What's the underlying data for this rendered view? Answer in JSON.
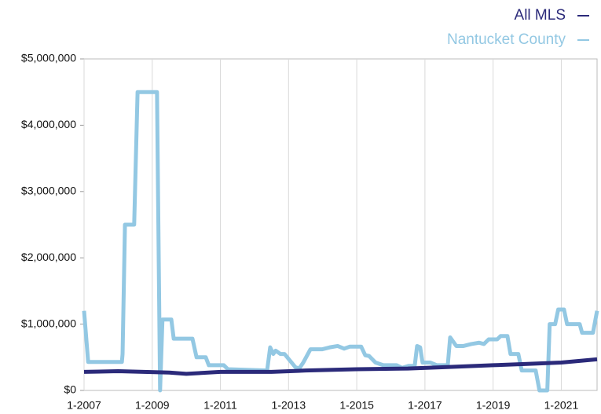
{
  "chart_data": {
    "type": "line",
    "series": [
      {
        "name": "All MLS",
        "color": "#2b2a7a",
        "x": [
          2007,
          2008,
          2009.5,
          2010,
          2011,
          2012.5,
          2013.5,
          2015,
          2016.5,
          2017.5,
          2019,
          2020,
          2021,
          2022.05
        ],
        "values": [
          280000,
          290000,
          270000,
          250000,
          280000,
          280000,
          300000,
          320000,
          330000,
          350000,
          380000,
          400000,
          420000,
          470000
        ]
      },
      {
        "name": "Nantucket County",
        "color": "#93c8e3",
        "x": [
          2007,
          2007.12,
          2008.11,
          2008.13,
          2008.2,
          2008.47,
          2008.57,
          2009.14,
          2009.23,
          2009.3,
          2009.56,
          2009.63,
          2010.18,
          2010.3,
          2010.57,
          2010.66,
          2011.1,
          2011.22,
          2012.37,
          2012.46,
          2012.55,
          2012.62,
          2012.76,
          2012.88,
          2013.2,
          2013.31,
          2013.43,
          2013.64,
          2013.98,
          2014.21,
          2014.44,
          2014.63,
          2014.79,
          2015.13,
          2015.25,
          2015.36,
          2015.55,
          2015.78,
          2016.17,
          2016.33,
          2016.52,
          2016.7,
          2016.77,
          2016.86,
          2016.93,
          2017.16,
          2017.35,
          2017.67,
          2017.74,
          2017.92,
          2018.13,
          2018.36,
          2018.59,
          2018.73,
          2018.87,
          2019.12,
          2019.22,
          2019.42,
          2019.51,
          2019.74,
          2019.84,
          2020.25,
          2020.36,
          2020.59,
          2020.66,
          2020.82,
          2020.91,
          2021.08,
          2021.17,
          2021.54,
          2021.61,
          2021.93,
          2022.05
        ],
        "values": [
          1200000,
          430000,
          430000,
          550000,
          2500000,
          2500000,
          4500000,
          4500000,
          0,
          1070000,
          1070000,
          780000,
          780000,
          500000,
          500000,
          380000,
          380000,
          320000,
          300000,
          650000,
          550000,
          600000,
          550000,
          550000,
          350000,
          330000,
          420000,
          620000,
          620000,
          650000,
          670000,
          630000,
          660000,
          660000,
          530000,
          520000,
          420000,
          380000,
          380000,
          340000,
          370000,
          370000,
          670000,
          650000,
          420000,
          420000,
          380000,
          380000,
          800000,
          670000,
          670000,
          700000,
          720000,
          700000,
          770000,
          770000,
          820000,
          820000,
          550000,
          550000,
          300000,
          300000,
          0,
          0,
          1000000,
          1000000,
          1220000,
          1220000,
          1000000,
          1000000,
          870000,
          870000,
          1200000
        ]
      }
    ],
    "xlim": [
      2007,
      2022.05
    ],
    "xticks": [
      {
        "value": 2007,
        "label": "1-2007"
      },
      {
        "value": 2009,
        "label": "1-2009"
      },
      {
        "value": 2011,
        "label": "1-2011"
      },
      {
        "value": 2013,
        "label": "1-2013"
      },
      {
        "value": 2015,
        "label": "1-2015"
      },
      {
        "value": 2017,
        "label": "1-2017"
      },
      {
        "value": 2019,
        "label": "1-2019"
      },
      {
        "value": 2021,
        "label": "1-2021"
      }
    ],
    "ylim": [
      0,
      5000000
    ],
    "yticks": [
      {
        "value": 0,
        "label": "$0"
      },
      {
        "value": 1000000,
        "label": "$1,000,000"
      },
      {
        "value": 2000000,
        "label": "$2,000,000"
      },
      {
        "value": 3000000,
        "label": "$3,000,000"
      },
      {
        "value": 4000000,
        "label": "$4,000,000"
      },
      {
        "value": 5000000,
        "label": "$5,000,000"
      }
    ],
    "grid": true,
    "legend": "top-right"
  }
}
